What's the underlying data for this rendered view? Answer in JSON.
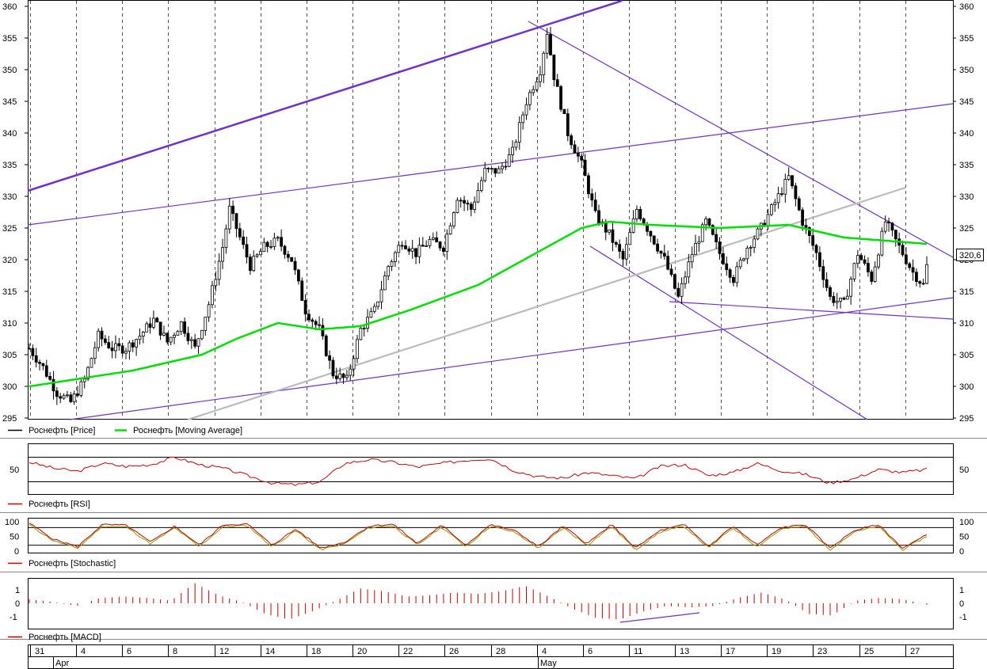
{
  "chart_data": [
    {
      "type": "candlestick",
      "panel": "price",
      "ylim": [
        294,
        361
      ],
      "y_ticks": [
        295,
        300,
        305,
        310,
        315,
        320,
        325,
        330,
        335,
        340,
        345,
        350,
        355,
        360
      ],
      "last_value_label": "320,6",
      "legend": [
        {
          "name": "Роснефть [Price]",
          "color": "#000000"
        },
        {
          "name": "Роснефть [Moving Average]",
          "color": "#00e000"
        }
      ],
      "close_path": [
        [
          0,
          306
        ],
        [
          4,
          303
        ],
        [
          8,
          299
        ],
        [
          12,
          297.5
        ],
        [
          16,
          301
        ],
        [
          20,
          308
        ],
        [
          24,
          306
        ],
        [
          28,
          306
        ],
        [
          32,
          308
        ],
        [
          36,
          310.5
        ],
        [
          40,
          307
        ],
        [
          44,
          310
        ],
        [
          48,
          306
        ],
        [
          52,
          313
        ],
        [
          56,
          322
        ],
        [
          58,
          328
        ],
        [
          60,
          325
        ],
        [
          64,
          319
        ],
        [
          68,
          322
        ],
        [
          72,
          323
        ],
        [
          76,
          320
        ],
        [
          80,
          312
        ],
        [
          84,
          309
        ],
        [
          88,
          302
        ],
        [
          92,
          301
        ],
        [
          96,
          309
        ],
        [
          100,
          312
        ],
        [
          104,
          319
        ],
        [
          108,
          323
        ],
        [
          112,
          321
        ],
        [
          116,
          323
        ],
        [
          120,
          322
        ],
        [
          124,
          330
        ],
        [
          128,
          328
        ],
        [
          132,
          334
        ],
        [
          136,
          334
        ],
        [
          140,
          337
        ],
        [
          144,
          345
        ],
        [
          148,
          350
        ],
        [
          150,
          356
        ],
        [
          152,
          349
        ],
        [
          156,
          340
        ],
        [
          160,
          335
        ],
        [
          164,
          327
        ],
        [
          168,
          324
        ],
        [
          172,
          320
        ],
        [
          176,
          328
        ],
        [
          180,
          324
        ],
        [
          184,
          320
        ],
        [
          188,
          314
        ],
        [
          192,
          321
        ],
        [
          196,
          326
        ],
        [
          200,
          321
        ],
        [
          204,
          317
        ],
        [
          208,
          322
        ],
        [
          212,
          325
        ],
        [
          216,
          329
        ],
        [
          220,
          333
        ],
        [
          224,
          326
        ],
        [
          228,
          321
        ],
        [
          232,
          314
        ],
        [
          236,
          313
        ],
        [
          240,
          321
        ],
        [
          244,
          317
        ],
        [
          248,
          326
        ],
        [
          252,
          322
        ],
        [
          256,
          318
        ],
        [
          259,
          316
        ],
        [
          260,
          319
        ]
      ],
      "moving_average_path": [
        [
          0,
          300
        ],
        [
          30,
          302.5
        ],
        [
          50,
          305
        ],
        [
          60,
          307.5
        ],
        [
          72,
          310
        ],
        [
          84,
          309
        ],
        [
          96,
          309.5
        ],
        [
          110,
          312
        ],
        [
          130,
          316
        ],
        [
          150,
          322
        ],
        [
          160,
          325
        ],
        [
          168,
          326
        ],
        [
          180,
          325.5
        ],
        [
          200,
          325
        ],
        [
          220,
          325.5
        ],
        [
          236,
          323.5
        ],
        [
          260,
          322.5
        ]
      ]
    },
    {
      "type": "line",
      "panel": "rsi",
      "title": "Роснефть [RSI]",
      "y_ticks": [
        50
      ],
      "levels": [
        70,
        30
      ],
      "ylim": [
        10,
        90
      ],
      "series": [
        {
          "name": "Роснефть [RSI]",
          "color": "#cc0000",
          "values": [
            62,
            52,
            47,
            60,
            55,
            58,
            70,
            58,
            52,
            40,
            28,
            25,
            30,
            60,
            66,
            62,
            54,
            60,
            65,
            68,
            48,
            38,
            36,
            45,
            40,
            35,
            55,
            58,
            40,
            45,
            60,
            48,
            42,
            28,
            35,
            50,
            45,
            50
          ]
        }
      ]
    },
    {
      "type": "line",
      "panel": "stochastic",
      "title": "Роснефть [Stochastic]",
      "y_ticks": [
        0,
        50,
        100
      ],
      "levels": [
        80,
        20
      ],
      "ylim": [
        0,
        100
      ],
      "series": [
        {
          "name": "Роснефть [Stochastic]",
          "color": "#cc0000",
          "values": [
            95,
            40,
            15,
            90,
            88,
            30,
            85,
            20,
            90,
            92,
            20,
            75,
            10,
            30,
            85,
            92,
            25,
            88,
            20,
            90,
            70,
            15,
            85,
            25,
            90,
            10,
            70,
            90,
            15,
            85,
            20,
            80,
            90,
            10,
            70,
            90,
            10,
            55
          ]
        }
      ]
    },
    {
      "type": "bar",
      "panel": "macd",
      "title": "Роснефть [MACD]",
      "y_ticks": [
        -1,
        0,
        1
      ],
      "ylim": [
        -1.6,
        1.6
      ],
      "series": [
        {
          "name": "Роснефть [MACD]",
          "color": "#cc0000",
          "values": [
            0.3,
            0.1,
            -0.2,
            0.4,
            0.5,
            0.4,
            0.2,
            1.5,
            0.6,
            0.1,
            -0.8,
            -1.2,
            -0.6,
            0.2,
            1.1,
            0.9,
            0.5,
            0.6,
            0.8,
            0.7,
            0.9,
            1.3,
            0.5,
            -0.4,
            -1.1,
            -1.2,
            -0.6,
            -0.2,
            -0.3,
            -0.2,
            0.4,
            0.8,
            0.3,
            -0.8,
            -0.9,
            0.2,
            0.4,
            0.3,
            -0.1
          ]
        }
      ]
    }
  ],
  "x_axis": {
    "day_labels": [
      "31",
      "4",
      "6",
      "8",
      "12",
      "14",
      "18",
      "20",
      "22",
      "26",
      "28",
      "4",
      "6",
      "11",
      "13",
      "17",
      "19",
      "23",
      "25",
      "27"
    ],
    "month_labels": [
      "Apr",
      "May"
    ]
  }
}
